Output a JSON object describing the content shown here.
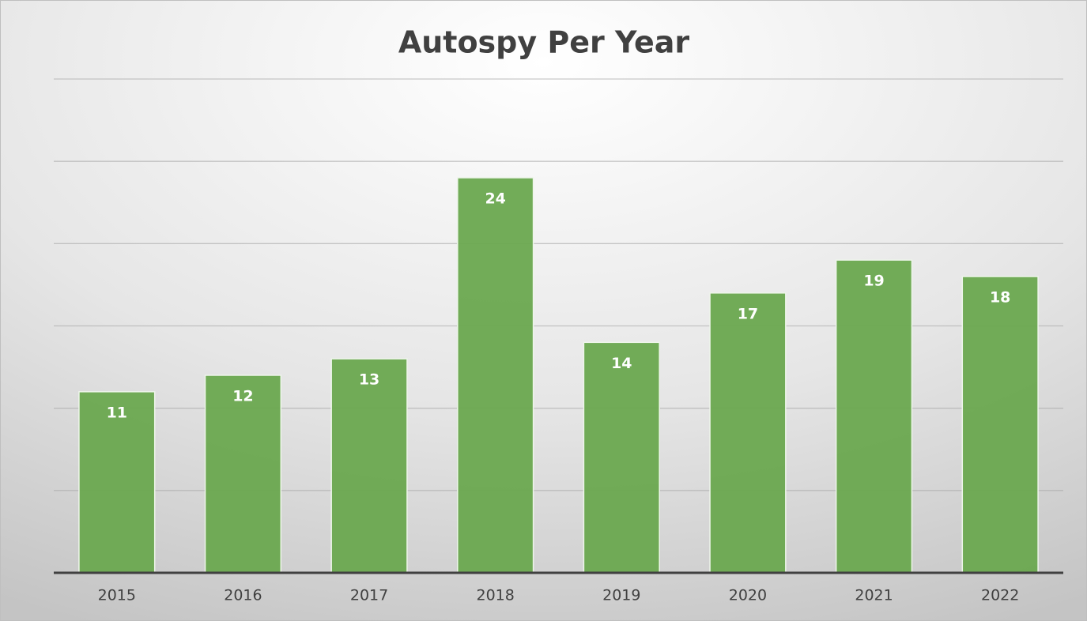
{
  "chart_data": {
    "type": "bar",
    "title": "Autospy Per Year",
    "categories": [
      "2015",
      "2016",
      "2017",
      "2018",
      "2019",
      "2020",
      "2021",
      "2022"
    ],
    "values": [
      11,
      12,
      13,
      24,
      14,
      17,
      19,
      18
    ],
    "color": "#6aa84f",
    "ylim": [
      0,
      30
    ],
    "yticks": [
      0,
      5,
      10,
      15,
      20,
      25,
      30
    ],
    "grid": true
  }
}
